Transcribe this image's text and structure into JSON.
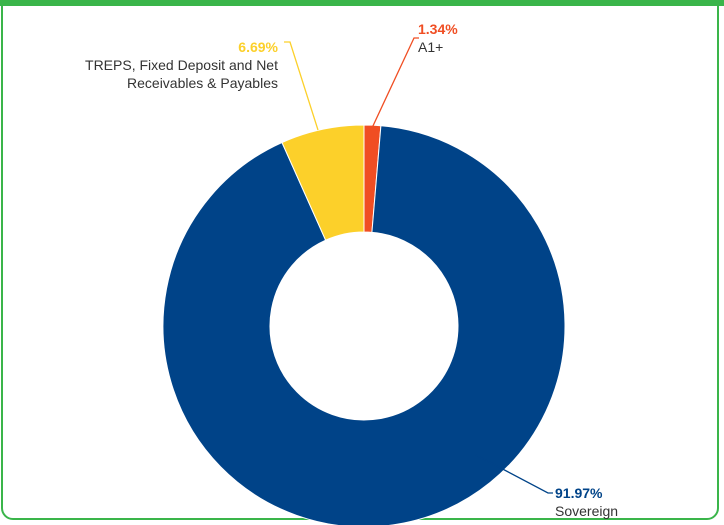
{
  "chart_data": {
    "type": "donut",
    "categories": [
      "A1+",
      "Sovereign",
      "TREPS, Fixed Deposit and Net Receivables & Payables"
    ],
    "values": [
      1.34,
      91.97,
      6.69
    ],
    "value_labels": [
      "1.34%",
      "91.97%",
      "6.69%"
    ],
    "colors": [
      "#f04e23",
      "#004388",
      "#fcd02a"
    ]
  }
}
